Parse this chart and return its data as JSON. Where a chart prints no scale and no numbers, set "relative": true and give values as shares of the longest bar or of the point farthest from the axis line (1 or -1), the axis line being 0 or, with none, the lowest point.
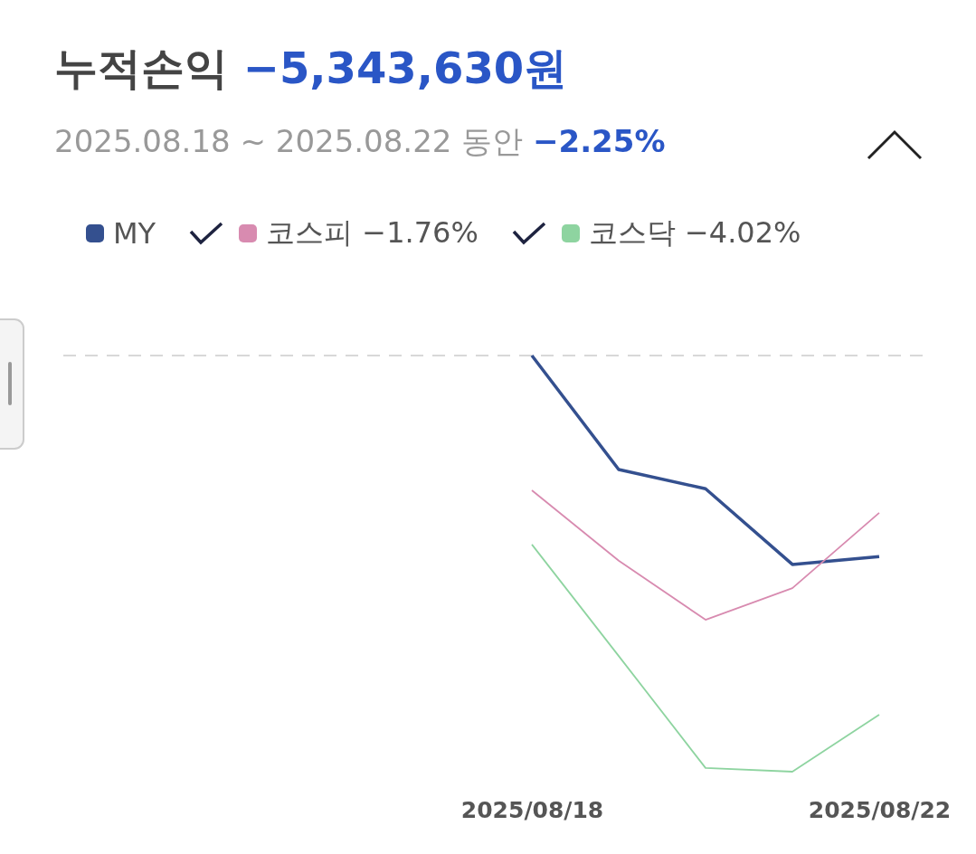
{
  "chart_data": {
    "type": "line",
    "title": "누적손익 −5,343,630원",
    "subtitle": "2025.08.18 ~ 2025.08.22 동안 −2.25%",
    "relative": true,
    "legend": "top",
    "x": [
      "2025-08-18",
      "2025-08-19",
      "2025-08-20",
      "2025-08-21",
      "2025-08-22"
    ],
    "xlim": [
      "2025-08-12T12:00",
      "2025-08-22T12:00"
    ],
    "xticks": [
      {
        "value": "2025-08-18",
        "label": "2025/08/18"
      },
      {
        "value": "2025-08-22",
        "label": "2025/08/22"
      }
    ],
    "ref_lines": [
      {
        "axis": "y",
        "value": 0,
        "color": "#cccccc",
        "line_style": "dashed"
      }
    ],
    "series": [
      {
        "name": "MY",
        "color": "#34508f",
        "values": [
          0,
          -0.274,
          -0.32,
          -0.502,
          -0.483
        ]
      },
      {
        "name": "코스피 −1.76%",
        "color": "#d88bb0",
        "values": [
          -0.324,
          -0.493,
          -0.635,
          -0.559,
          -0.378
        ]
      },
      {
        "name": "코스닥 −4.02%",
        "color": "#8ed4a0",
        "values": [
          -0.454,
          -0.722,
          -0.991,
          -1,
          -0.863
        ]
      }
    ]
  }
}
